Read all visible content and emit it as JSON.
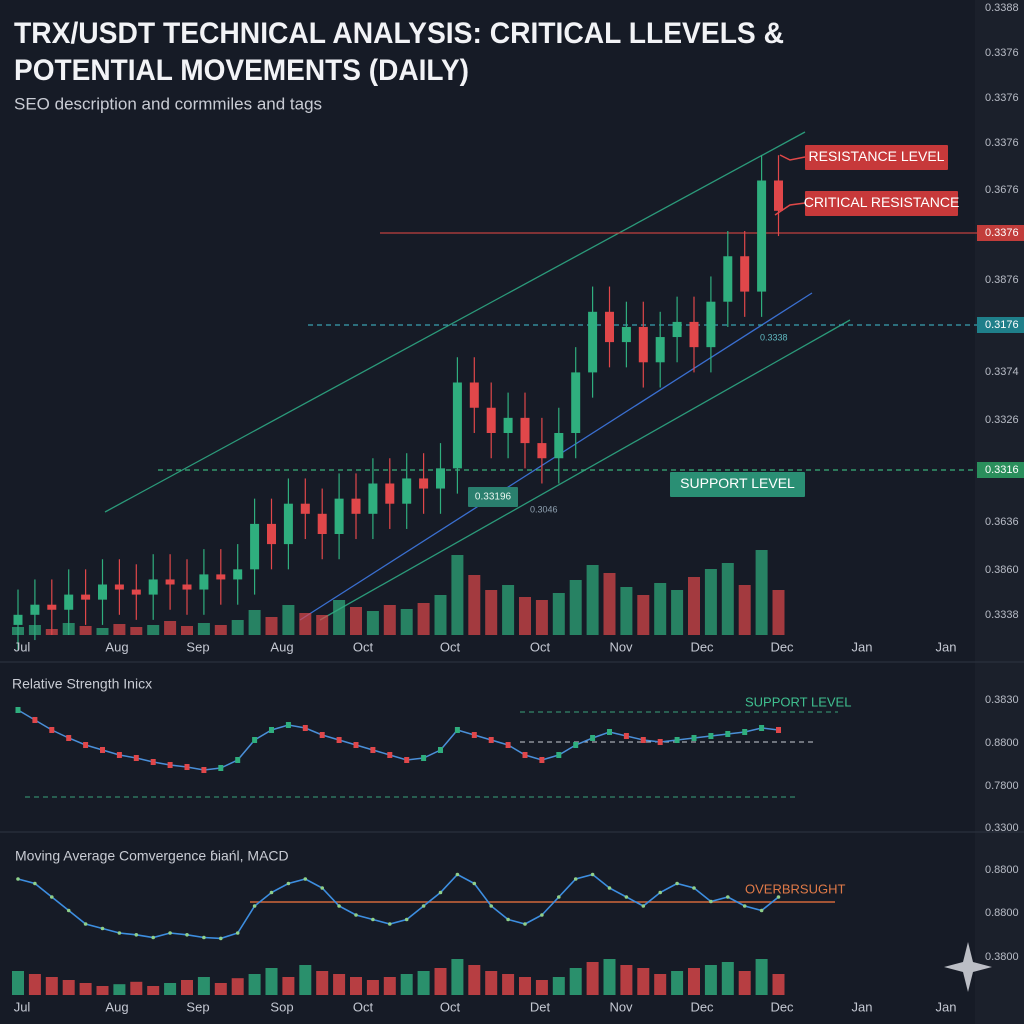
{
  "chart_data": [
    {
      "type": "candlestick",
      "title_lines": [
        "TRX/USDT TECHNICAL ANALYSIS: CRITICAL LLEVELS &",
        "POTENTIAL MOVEMENTS (DAILY)"
      ],
      "subtitle": "SEO description and cormmiles and tags",
      "up_color": "#2fae7e",
      "down_color": "#e0474a",
      "ylim": [
        0.33,
        0.34
      ],
      "open": [
        0.3302,
        0.3304,
        0.3306,
        0.3305,
        0.3308,
        0.3307,
        0.331,
        0.3309,
        0.3308,
        0.3311,
        0.331,
        0.3309,
        0.3312,
        0.3311,
        0.3313,
        0.3322,
        0.3318,
        0.3326,
        0.3324,
        0.332,
        0.3327,
        0.3324,
        0.333,
        0.3326,
        0.3331,
        0.3329,
        0.3333,
        0.335,
        0.3345,
        0.334,
        0.3343,
        0.3338,
        0.3335,
        0.334,
        0.3352,
        0.3364,
        0.3358,
        0.3361,
        0.3354,
        0.3359,
        0.3362,
        0.3357,
        0.3366,
        0.3375,
        0.3368,
        0.339
      ],
      "high": [
        0.3309,
        0.3311,
        0.3311,
        0.3313,
        0.3313,
        0.3315,
        0.3315,
        0.3314,
        0.3316,
        0.3316,
        0.3315,
        0.3317,
        0.3317,
        0.3318,
        0.3327,
        0.3327,
        0.3331,
        0.3331,
        0.3329,
        0.3332,
        0.3332,
        0.3335,
        0.3335,
        0.3336,
        0.3336,
        0.3338,
        0.3355,
        0.3355,
        0.335,
        0.3348,
        0.3348,
        0.3343,
        0.3345,
        0.3357,
        0.3369,
        0.3369,
        0.3366,
        0.3366,
        0.3364,
        0.3367,
        0.3367,
        0.3371,
        0.338,
        0.338,
        0.3395,
        0.3395
      ],
      "low": [
        0.3297,
        0.3299,
        0.33,
        0.33,
        0.3302,
        0.3302,
        0.3304,
        0.3303,
        0.3303,
        0.3305,
        0.3304,
        0.3304,
        0.3306,
        0.3306,
        0.3308,
        0.3313,
        0.3313,
        0.3319,
        0.3315,
        0.3315,
        0.3319,
        0.3319,
        0.3321,
        0.3321,
        0.3324,
        0.3324,
        0.3328,
        0.334,
        0.3335,
        0.3335,
        0.3333,
        0.333,
        0.333,
        0.3335,
        0.3347,
        0.3353,
        0.3353,
        0.3349,
        0.3349,
        0.3354,
        0.3352,
        0.3352,
        0.3361,
        0.3363,
        0.3363,
        0.3379
      ],
      "close": [
        0.3304,
        0.3306,
        0.3305,
        0.3308,
        0.3307,
        0.331,
        0.3309,
        0.3308,
        0.3311,
        0.331,
        0.3309,
        0.3312,
        0.3311,
        0.3313,
        0.3322,
        0.3318,
        0.3326,
        0.3324,
        0.332,
        0.3327,
        0.3324,
        0.333,
        0.3326,
        0.3331,
        0.3329,
        0.3333,
        0.335,
        0.3345,
        0.334,
        0.3343,
        0.3338,
        0.3335,
        0.334,
        0.3352,
        0.3364,
        0.3358,
        0.3361,
        0.3354,
        0.3359,
        0.3362,
        0.3357,
        0.3366,
        0.3375,
        0.3368,
        0.339,
        0.3384
      ],
      "volume": [
        8,
        10,
        6,
        12,
        9,
        7,
        11,
        8,
        10,
        14,
        9,
        12,
        10,
        15,
        25,
        18,
        30,
        22,
        20,
        35,
        28,
        24,
        30,
        26,
        32,
        40,
        80,
        60,
        45,
        50,
        38,
        35,
        42,
        55,
        70,
        62,
        48,
        40,
        52,
        45,
        58,
        66,
        72,
        50,
        85,
        45
      ],
      "volume_lim": [
        0,
        100
      ],
      "price_labels": [
        "0.3388",
        "0.3376",
        "0.3376",
        "0.3376",
        "0.3676",
        "0.3876",
        "0.3374",
        "0.3326",
        "0.3636",
        "0.3860",
        "0.3338"
      ],
      "level_labels": [
        "0.3376",
        "0.3176",
        "0.3316"
      ],
      "annotations": [
        "RESISTANCE LEVEL",
        "CRITICAL RESISTANCE",
        "SUPPORT   LEVEL",
        "0.33196",
        "0.3046",
        "0.3338"
      ],
      "x_labels": [
        "Jul",
        "Aug",
        "Sep",
        "Aug",
        "Oct",
        "Oct",
        "Oct",
        "Nov",
        "Dec",
        "Dec",
        "Jan",
        "Jan"
      ]
    },
    {
      "type": "line",
      "title": "Relative Strength Inicx",
      "color": "#4a8fd8",
      "ylim": [
        0,
        100
      ],
      "values": [
        90,
        80,
        70,
        62,
        55,
        50,
        45,
        42,
        38,
        35,
        33,
        30,
        32,
        40,
        60,
        70,
        75,
        72,
        65,
        60,
        55,
        50,
        45,
        40,
        42,
        50,
        70,
        65,
        60,
        55,
        45,
        40,
        45,
        55,
        62,
        68,
        64,
        60,
        58,
        60,
        62,
        64,
        66,
        68,
        72,
        70
      ],
      "axis_labels": [
        "0.3830",
        "0.8800",
        "0.7800",
        "0.3300"
      ],
      "annotation": "SUPPORT LEVEL"
    },
    {
      "type": "macd",
      "title": "Moving Average Comvergence ɓiańl, MACD",
      "line_color": "#3d8ee0",
      "up_color": "#2fae7e",
      "down_color": "#e0474a",
      "ylim": [
        0,
        100
      ],
      "histogram_lim": [
        0,
        100
      ],
      "histogram": [
        40,
        35,
        30,
        25,
        20,
        15,
        18,
        22,
        15,
        20,
        25,
        30,
        20,
        28,
        35,
        45,
        30,
        50,
        40,
        35,
        30,
        25,
        30,
        35,
        40,
        45,
        60,
        50,
        40,
        35,
        30,
        25,
        30,
        45,
        55,
        60,
        50,
        45,
        35,
        40,
        45,
        50,
        55,
        40,
        60,
        35
      ],
      "macd": [
        90,
        85,
        70,
        55,
        40,
        35,
        30,
        28,
        25,
        30,
        28,
        25,
        24,
        30,
        60,
        75,
        85,
        90,
        80,
        60,
        50,
        45,
        40,
        45,
        60,
        75,
        95,
        85,
        60,
        45,
        40,
        50,
        70,
        90,
        95,
        80,
        70,
        60,
        75,
        85,
        80,
        65,
        70,
        60,
        55,
        70
      ],
      "axis_labels": [
        "0.8800",
        "0.8800",
        "0.3800"
      ],
      "annotation": "OVERBRSUGHT",
      "x_labels": [
        "Jul",
        "Aug",
        "Sep",
        "Sop",
        "Oct",
        "Oct",
        "Det",
        "Nov",
        "Dec",
        "Dec",
        "Jan",
        "Jan"
      ]
    }
  ]
}
